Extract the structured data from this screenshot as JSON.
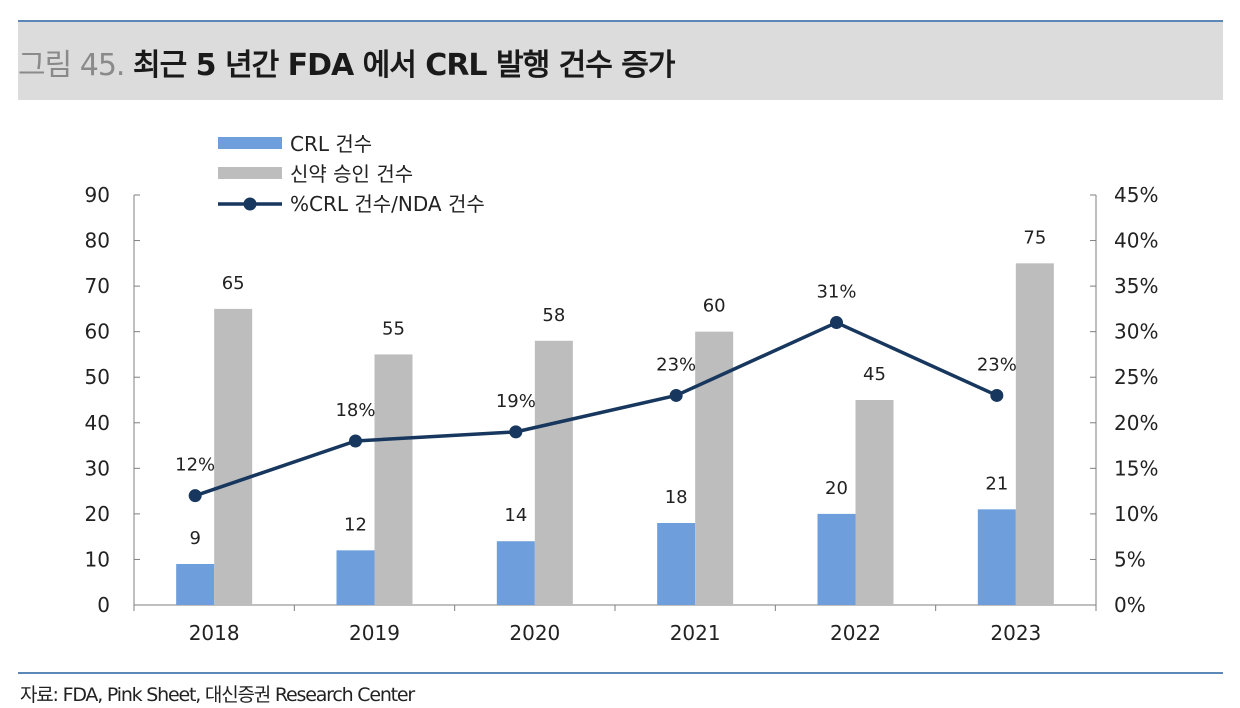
{
  "header": {
    "figure_number": "그림 45.",
    "title": "최근 5 년간 FDA 에서 CRL 발행 건수 증가"
  },
  "source_note": "자료: FDA, Pink Sheet, 대신증권 Research Center",
  "chart_data": {
    "type": "bar",
    "categories": [
      "2018",
      "2019",
      "2020",
      "2021",
      "2022",
      "2023"
    ],
    "series": [
      {
        "name": "CRL 건수",
        "type": "bar",
        "axis": "left",
        "color": "#6e9fdc",
        "values": [
          9,
          12,
          14,
          18,
          20,
          21
        ],
        "labels": [
          "9",
          "12",
          "14",
          "18",
          "20",
          "21"
        ]
      },
      {
        "name": "신약 승인 건수",
        "type": "bar",
        "axis": "left",
        "color": "#bdbdbd",
        "values": [
          65,
          55,
          58,
          60,
          45,
          75
        ],
        "labels": [
          "65",
          "55",
          "58",
          "60",
          "45",
          "75"
        ]
      },
      {
        "name": "%CRL 건수/NDA 건수",
        "type": "line",
        "axis": "right",
        "color": "#17375e",
        "values": [
          12,
          18,
          19,
          23,
          31,
          23
        ],
        "labels": [
          "12%",
          "18%",
          "19%",
          "23%",
          "31%",
          "23%"
        ]
      }
    ],
    "left_axis": {
      "min": 0,
      "max": 90,
      "ticks": [
        "0",
        "10",
        "20",
        "30",
        "40",
        "50",
        "60",
        "70",
        "80",
        "90"
      ]
    },
    "right_axis": {
      "min": 0,
      "max": 45,
      "ticks": [
        "0%",
        "5%",
        "10%",
        "15%",
        "20%",
        "25%",
        "30%",
        "35%",
        "40%",
        "45%"
      ]
    },
    "legend_position": "top-left",
    "grid": false
  }
}
